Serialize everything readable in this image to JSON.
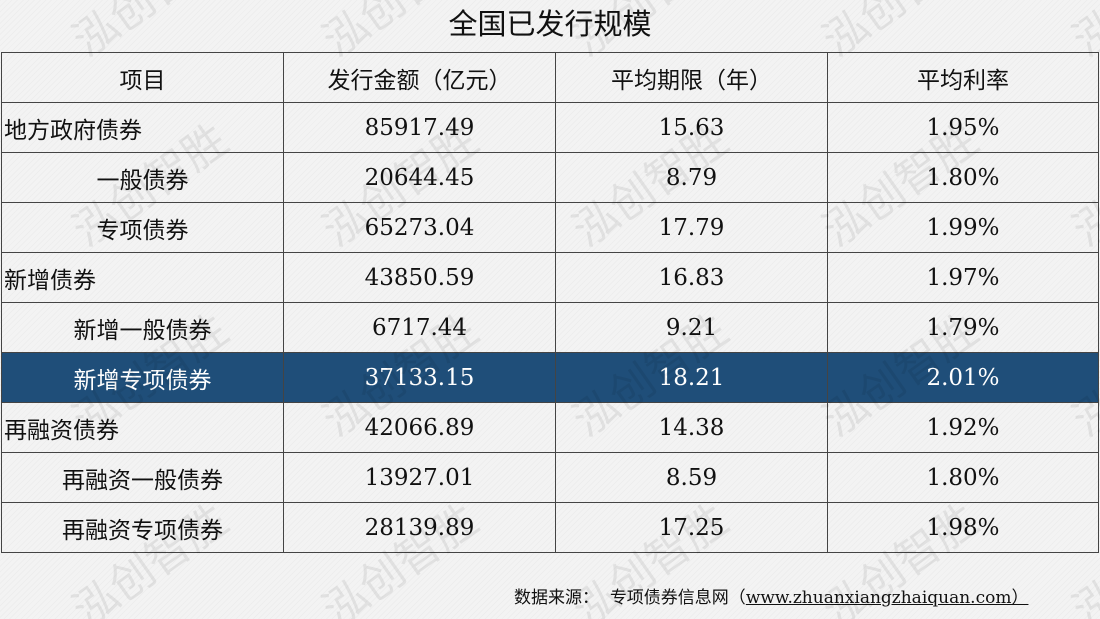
{
  "title": "全国已发行规模",
  "watermark": "泓创智胜",
  "highlight_color": "#1f4e79",
  "table": {
    "headers": [
      "项目",
      "发行金额（亿元）",
      "平均期限（年）",
      "平均利率"
    ],
    "rows": [
      {
        "name": "地方政府债券",
        "amount": "85917.49",
        "term": "15.63",
        "rate": "1.95%",
        "level": 0
      },
      {
        "name": "一般债券",
        "amount": "20644.45",
        "term": "8.79",
        "rate": "1.80%",
        "level": 1
      },
      {
        "name": "专项债券",
        "amount": "65273.04",
        "term": "17.79",
        "rate": "1.99%",
        "level": 1
      },
      {
        "name": "新增债券",
        "amount": "43850.59",
        "term": "16.83",
        "rate": "1.97%",
        "level": 0
      },
      {
        "name": "新增一般债券",
        "amount": "6717.44",
        "term": "9.21",
        "rate": "1.79%",
        "level": 1
      },
      {
        "name": "新增专项债券",
        "amount": "37133.15",
        "term": "18.21",
        "rate": "2.01%",
        "level": 1,
        "highlighted": true
      },
      {
        "name": "再融资债券",
        "amount": "42066.89",
        "term": "14.38",
        "rate": "1.92%",
        "level": 0
      },
      {
        "name": "再融资一般债券",
        "amount": "13927.01",
        "term": "8.59",
        "rate": "1.80%",
        "level": 1
      },
      {
        "name": "再融资专项债券",
        "amount": "28139.89",
        "term": "17.25",
        "rate": "1.98%",
        "level": 1
      }
    ]
  },
  "source": {
    "label": "数据来源：",
    "site": "专项债券信息网（",
    "url": "www.zhuanxiangzhaiquan.com）"
  }
}
